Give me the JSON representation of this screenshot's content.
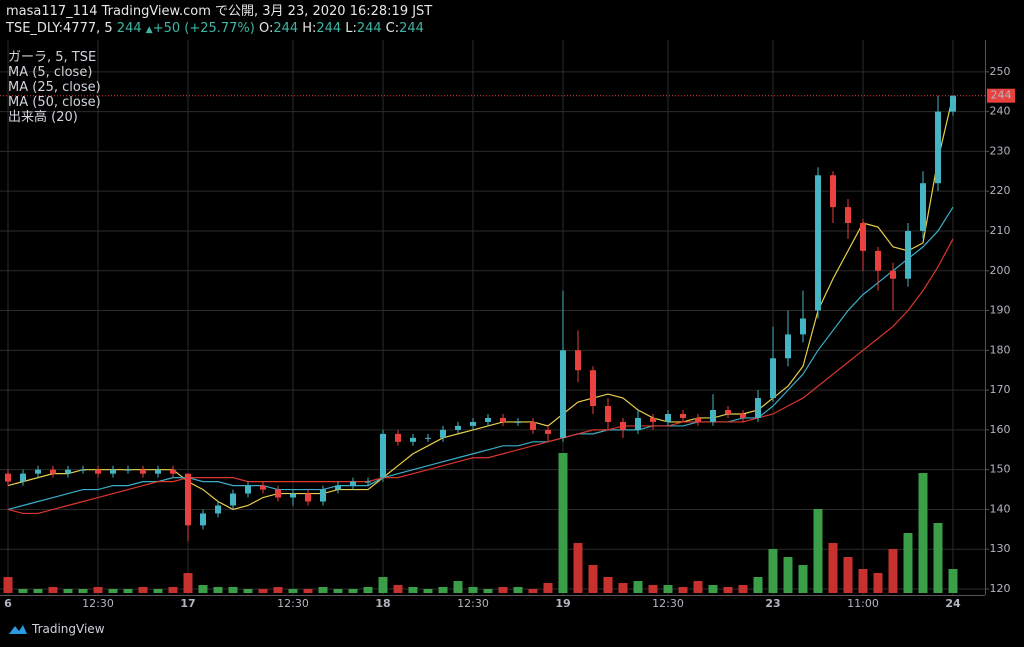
{
  "chart_data": {
    "type": "candlestick",
    "title": "masa117_114 TradingView.com で公開, 3月 23, 2020 16:28:19 JST",
    "symbol": "TSE_DLY:4777, 5",
    "last": 244,
    "change_label": "+50 (+25.77%)",
    "ohlc_header": [
      {
        "label": "O:",
        "value": 244
      },
      {
        "label": "H:",
        "value": 244
      },
      {
        "label": "L:",
        "value": 244
      },
      {
        "label": "C:",
        "value": 244
      }
    ],
    "instrument": "ガーラ, 5, TSE",
    "categories": [
      "6",
      null,
      null,
      null,
      null,
      null,
      "12:30",
      null,
      null,
      null,
      null,
      null,
      "17",
      null,
      null,
      null,
      null,
      null,
      null,
      "12:30",
      null,
      null,
      null,
      null,
      null,
      "18",
      null,
      null,
      null,
      null,
      null,
      "12:30",
      null,
      null,
      null,
      null,
      null,
      "19",
      null,
      null,
      null,
      null,
      null,
      null,
      "12:30",
      null,
      null,
      null,
      null,
      null,
      null,
      "23",
      null,
      null,
      null,
      null,
      null,
      "11:00",
      null,
      null,
      null,
      null,
      null,
      "24"
    ],
    "open": [
      149,
      147,
      149,
      150,
      149,
      150,
      150,
      149,
      150,
      150,
      149,
      150,
      149,
      136,
      139,
      141,
      144,
      146,
      145,
      143,
      144,
      142,
      145,
      146,
      147,
      148,
      159,
      157,
      158,
      158,
      160,
      161,
      162,
      163,
      162,
      162,
      160,
      158,
      180,
      175,
      166,
      162,
      160,
      163,
      162,
      164,
      163,
      162,
      165,
      164,
      163,
      168,
      178,
      184,
      190,
      224,
      216,
      212,
      205,
      200,
      198,
      210,
      222,
      240
    ],
    "high": [
      150,
      150,
      151,
      151,
      151,
      151,
      151,
      151,
      151,
      151,
      151,
      151,
      149,
      140,
      142,
      145,
      147,
      147,
      146,
      145,
      145,
      146,
      147,
      148,
      148,
      160,
      160,
      159,
      159,
      161,
      162,
      163,
      164,
      164,
      163,
      163,
      161,
      195,
      185,
      176,
      168,
      163,
      165,
      164,
      165,
      165,
      164,
      169,
      166,
      165,
      170,
      186,
      190,
      195,
      226,
      225,
      218,
      213,
      206,
      202,
      212,
      225,
      244,
      244
    ],
    "low": [
      146,
      146,
      148,
      148,
      148,
      149,
      148,
      148,
      149,
      148,
      148,
      148,
      132,
      135,
      138,
      140,
      143,
      144,
      142,
      141,
      141,
      141,
      144,
      145,
      146,
      147,
      156,
      156,
      157,
      157,
      159,
      160,
      161,
      161,
      161,
      159,
      157,
      157,
      172,
      164,
      160,
      158,
      159,
      160,
      161,
      162,
      161,
      161,
      163,
      162,
      162,
      167,
      176,
      182,
      188,
      212,
      208,
      200,
      195,
      190,
      196,
      208,
      220,
      239
    ],
    "close": [
      147,
      149,
      150,
      149,
      150,
      150,
      149,
      150,
      150,
      149,
      150,
      149,
      136,
      139,
      141,
      144,
      146,
      145,
      143,
      144,
      142,
      145,
      146,
      147,
      147,
      159,
      157,
      158,
      158,
      160,
      161,
      162,
      163,
      162,
      162,
      160,
      159,
      180,
      175,
      166,
      162,
      160,
      163,
      162,
      164,
      163,
      162,
      165,
      164,
      163,
      168,
      178,
      184,
      188,
      224,
      216,
      212,
      205,
      200,
      198,
      210,
      222,
      240,
      244
    ],
    "up_color": "#45b5c4",
    "down_color": "#e8413e",
    "series": [
      {
        "name": "MA (5, close)",
        "color": "#e8cf4a",
        "values": [
          146,
          147,
          148,
          149,
          149,
          150,
          150,
          150,
          150,
          150,
          150,
          150,
          147,
          145,
          142,
          140,
          141,
          143,
          144,
          144,
          144,
          144,
          145,
          145,
          145,
          148,
          151,
          154,
          156,
          158,
          159,
          160,
          161,
          162,
          162,
          162,
          161,
          164,
          167,
          168,
          169,
          168,
          165,
          163,
          162,
          162,
          163,
          163,
          164,
          164,
          165,
          168,
          171,
          176,
          190,
          198,
          205,
          212,
          211,
          206,
          205,
          207,
          228,
          244
        ]
      },
      {
        "name": "MA (25, close)",
        "color": "#3aaec8",
        "values": [
          140,
          141,
          142,
          143,
          144,
          145,
          145,
          146,
          146,
          147,
          147,
          148,
          148,
          147,
          147,
          146,
          146,
          146,
          145,
          145,
          145,
          145,
          146,
          146,
          146,
          148,
          149,
          150,
          151,
          152,
          153,
          154,
          155,
          156,
          156,
          157,
          157,
          158,
          159,
          159,
          160,
          160,
          160,
          161,
          161,
          161,
          162,
          162,
          162,
          163,
          163,
          166,
          170,
          174,
          180,
          185,
          190,
          194,
          197,
          200,
          203,
          206,
          210,
          216
        ]
      },
      {
        "name": "MA (50, close)",
        "color": "#d9362c",
        "values": [
          140,
          139,
          139,
          140,
          141,
          142,
          143,
          144,
          145,
          146,
          147,
          147,
          148,
          148,
          148,
          148,
          147,
          147,
          147,
          147,
          147,
          147,
          147,
          147,
          147,
          148,
          148,
          149,
          150,
          151,
          152,
          153,
          153,
          154,
          155,
          156,
          157,
          158,
          159,
          160,
          160,
          161,
          161,
          161,
          161,
          162,
          162,
          162,
          162,
          162,
          163,
          164,
          166,
          168,
          171,
          174,
          177,
          180,
          183,
          186,
          190,
          195,
          201,
          208
        ]
      }
    ],
    "volume": {
      "name": "出来高 (20)",
      "up_color": "#3b9e48",
      "down_color": "#c7322f",
      "values": [
        8,
        2,
        2,
        3,
        2,
        2,
        3,
        2,
        2,
        3,
        2,
        3,
        10,
        4,
        3,
        3,
        2,
        2,
        3,
        2,
        2,
        3,
        2,
        2,
        3,
        8,
        4,
        3,
        2,
        3,
        6,
        3,
        2,
        3,
        3,
        2,
        5,
        70,
        25,
        14,
        8,
        5,
        6,
        4,
        4,
        3,
        6,
        4,
        3,
        4,
        8,
        22,
        18,
        14,
        42,
        25,
        18,
        12,
        10,
        22,
        30,
        60,
        35,
        12
      ]
    },
    "ylim": [
      118.5,
      258
    ],
    "yticks": [
      120,
      130,
      140,
      150,
      160,
      170,
      180,
      190,
      200,
      210,
      220,
      230,
      240,
      250
    ],
    "grid": true
  },
  "footer": "TradingView"
}
